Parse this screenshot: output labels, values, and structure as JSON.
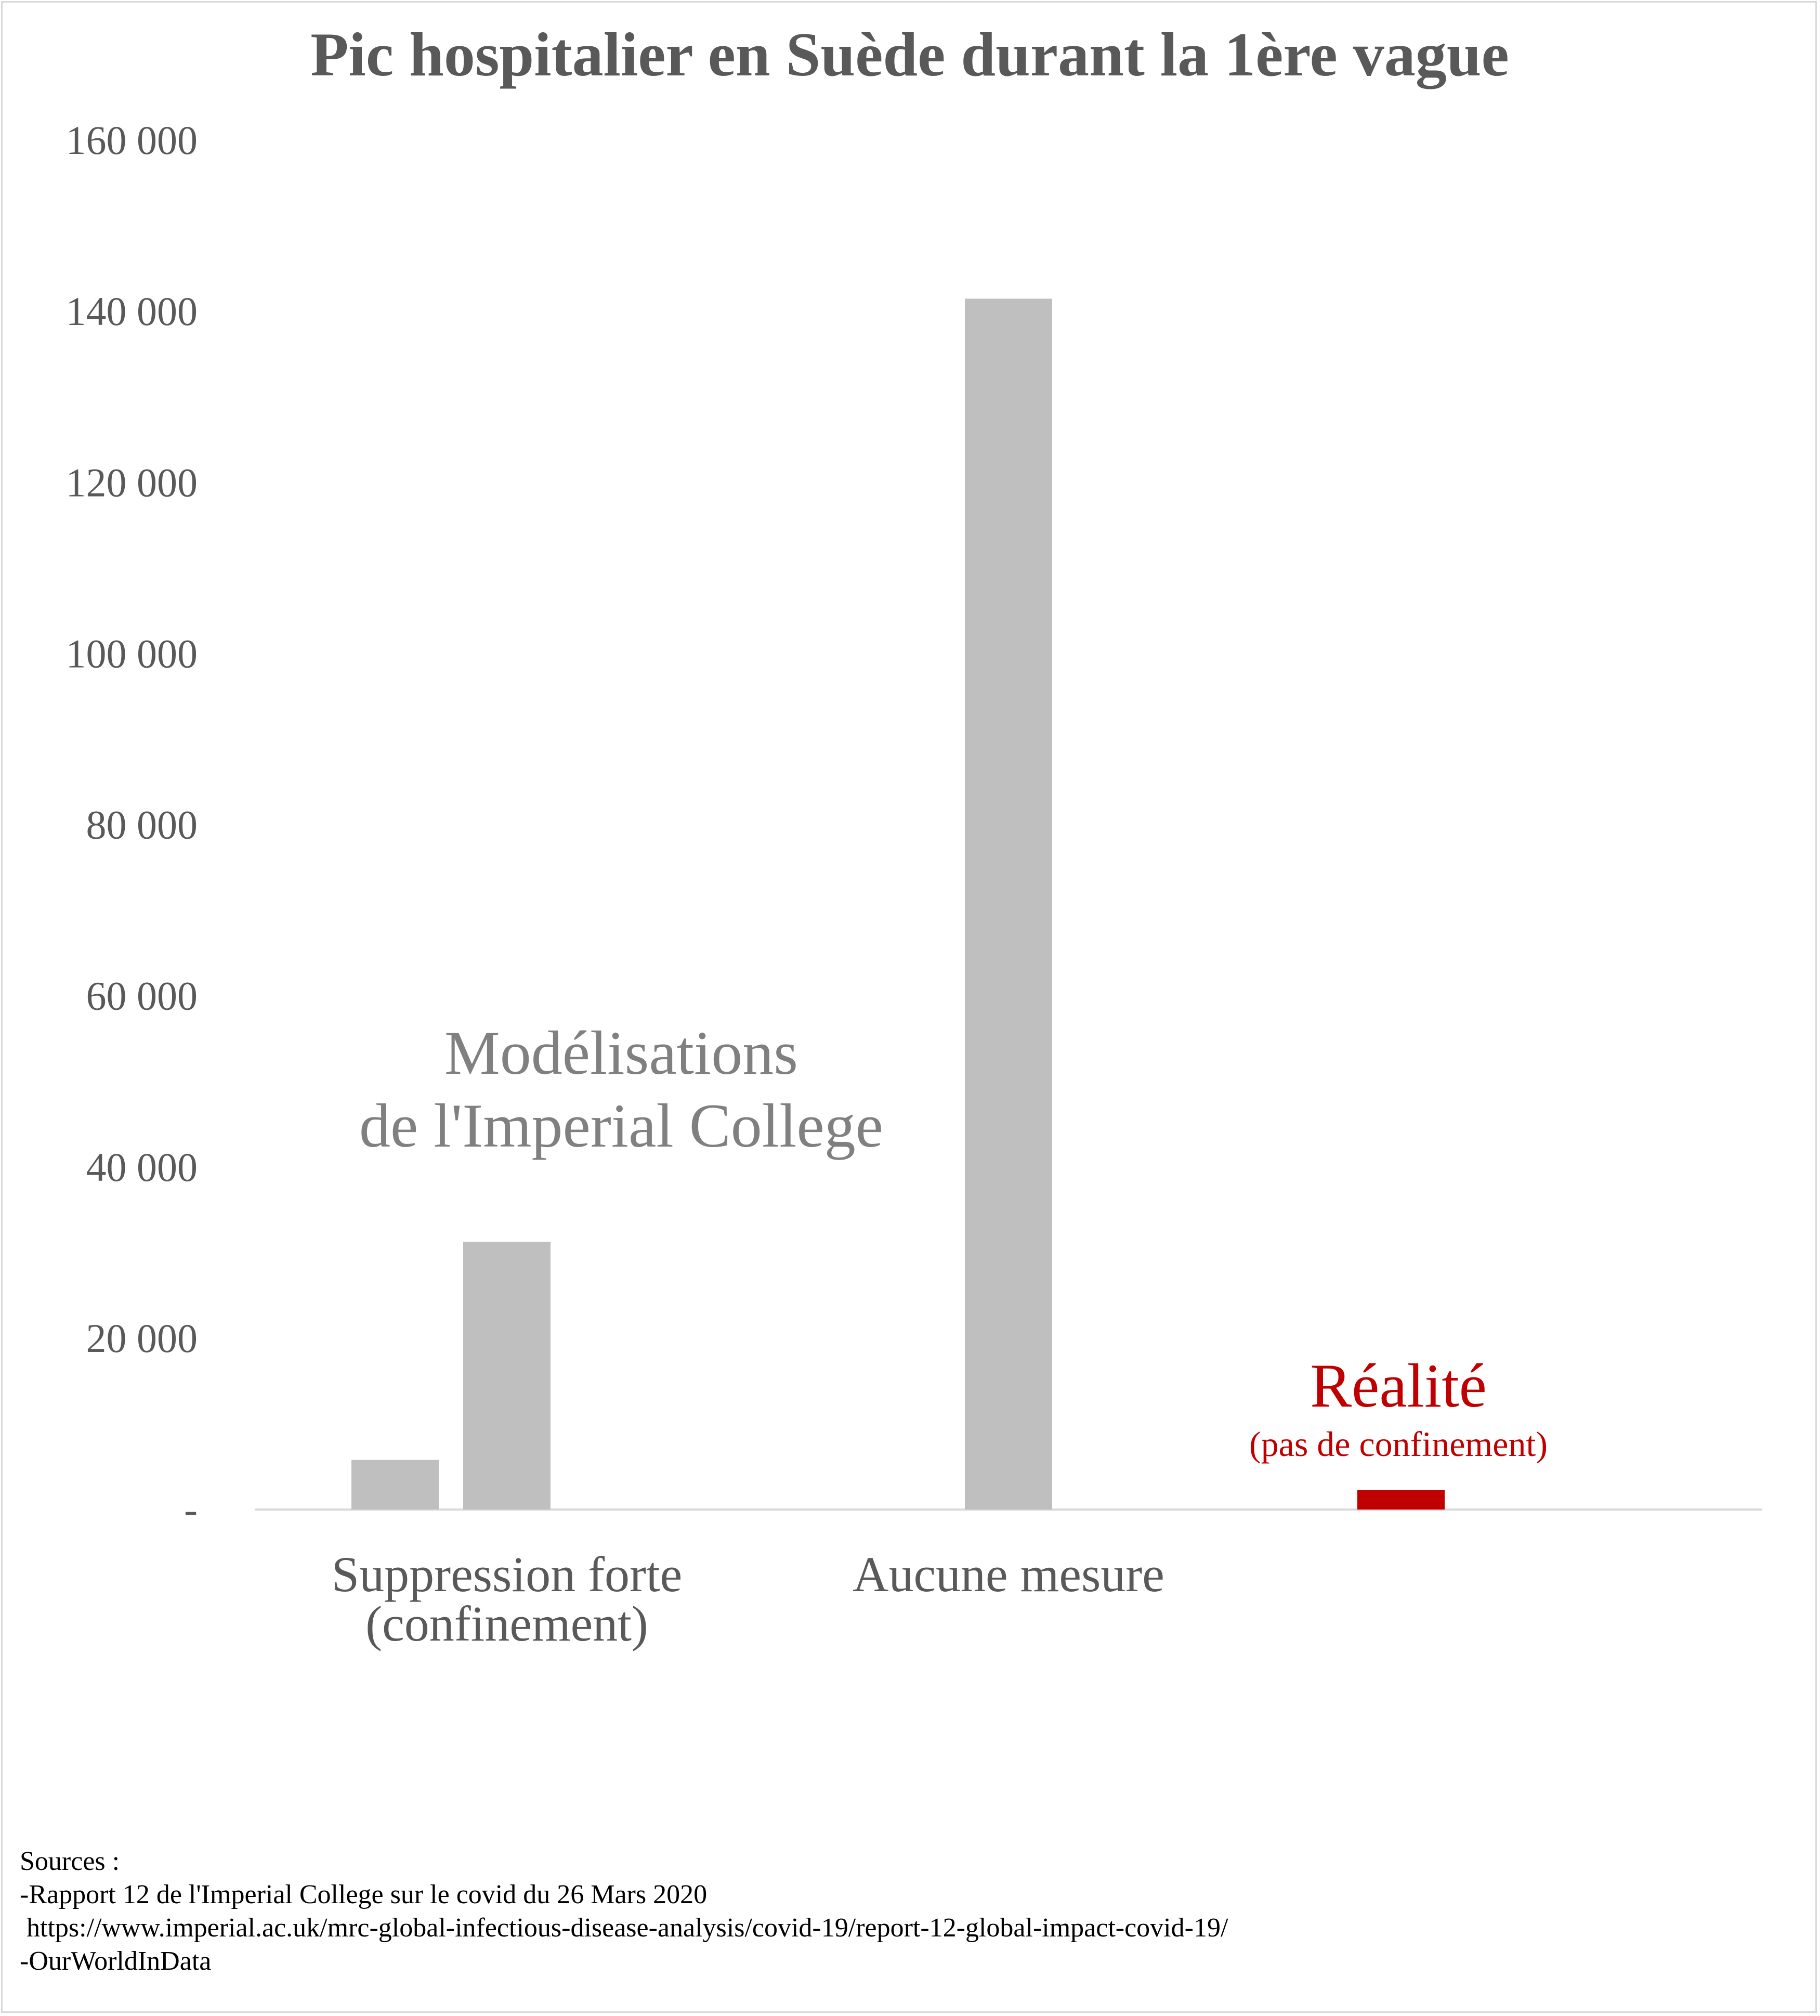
{
  "chart_data": {
    "type": "bar",
    "title": "Pic hospitalier en Suède durant la 1ère vague",
    "ylim": [
      0,
      160000
    ],
    "yticks": [
      0,
      20000,
      40000,
      60000,
      80000,
      100000,
      120000,
      140000,
      160000
    ],
    "ytick_labels": [
      "-",
      "20 000",
      "40 000",
      "60 000",
      "80 000",
      "100 000",
      "120 000",
      "140 000",
      "160 000"
    ],
    "grid": false,
    "legend": "none",
    "categories": [
      "Suppression forte\n(confinement)",
      "Aucune mesure",
      ""
    ],
    "category_lines": [
      [
        "Suppression forte",
        "(confinement)"
      ],
      [
        "Aucune mesure"
      ],
      []
    ],
    "bars": [
      {
        "group": 0,
        "value": 5800,
        "color": "#bfbfbf"
      },
      {
        "group": 0,
        "value": 31300,
        "color": "#bfbfbf"
      },
      {
        "group": 1,
        "value": 141500,
        "color": "#bfbfbf"
      },
      {
        "group": 2,
        "value": 2300,
        "color": "#c00000"
      }
    ],
    "annotations": [
      {
        "id": "imperial",
        "lines": [
          "Modélisations",
          "de l'Imperial College"
        ],
        "color": "#808080"
      },
      {
        "id": "realite",
        "lines": [
          "Réalité"
        ],
        "sub": "(pas de confinement)",
        "color": "#c00000"
      }
    ]
  },
  "sources": {
    "heading": "Sources :",
    "lines": [
      "-Rapport 12 de l'Imperial College sur le covid du 26 Mars 2020",
      " https://www.imperial.ac.uk/mrc-global-infectious-disease-analysis/covid-19/report-12-global-impact-covid-19/",
      "-OurWorldInData"
    ]
  },
  "colors": {
    "modeled": "#bfbfbf",
    "reality": "#c00000",
    "text": "#595959",
    "axis": "#d9d9d9"
  }
}
